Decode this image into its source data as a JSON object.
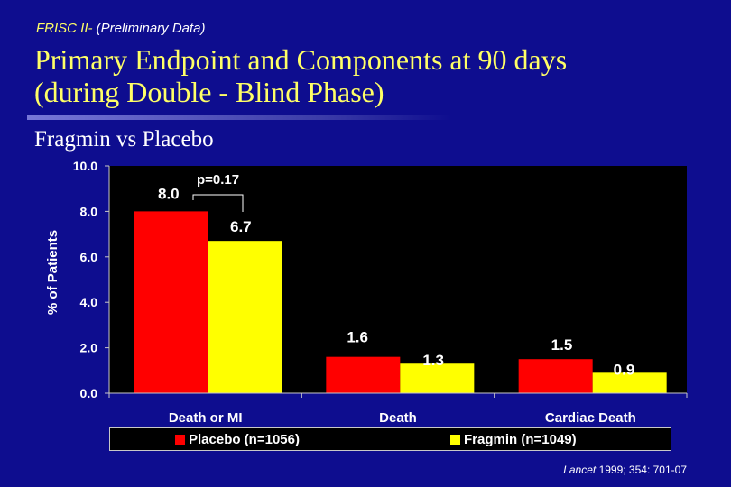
{
  "header": {
    "label_prefix": "FRISC II-",
    "label_rest": " (Preliminary Data)",
    "title_line1": "Primary Endpoint and Components at 90 days",
    "title_line2": "(during Double - Blind Phase)",
    "subtitle": "Fragmin vs Placebo"
  },
  "chart_data": {
    "type": "bar",
    "title": "",
    "ylabel": "% of Patients",
    "xlabel": "",
    "ylim": [
      0,
      10
    ],
    "ytick_values": [
      0,
      2,
      4,
      6,
      8,
      10
    ],
    "ytick_labels": [
      "0.0",
      "2.0",
      "4.0",
      "6.0",
      "8.0",
      "10.0"
    ],
    "categories": [
      "Death or MI",
      "Death",
      "Cardiac Death"
    ],
    "series": [
      {
        "name": "Placebo (n=1056)",
        "values": [
          8.0,
          1.6,
          1.5
        ],
        "labels": [
          "8.0",
          "1.6",
          "1.5"
        ],
        "color": "#ff0000"
      },
      {
        "name": "Fragmin (n=1049)",
        "values": [
          6.7,
          1.3,
          0.9
        ],
        "labels": [
          "6.7",
          "1.3",
          "0.9"
        ],
        "color": "#ffff00"
      }
    ],
    "annotation": "p=0.17",
    "grid": false,
    "legend_position": "bottom"
  },
  "citation": {
    "journal": "Lancet",
    "rest": " 1999; 354: 701-07"
  }
}
